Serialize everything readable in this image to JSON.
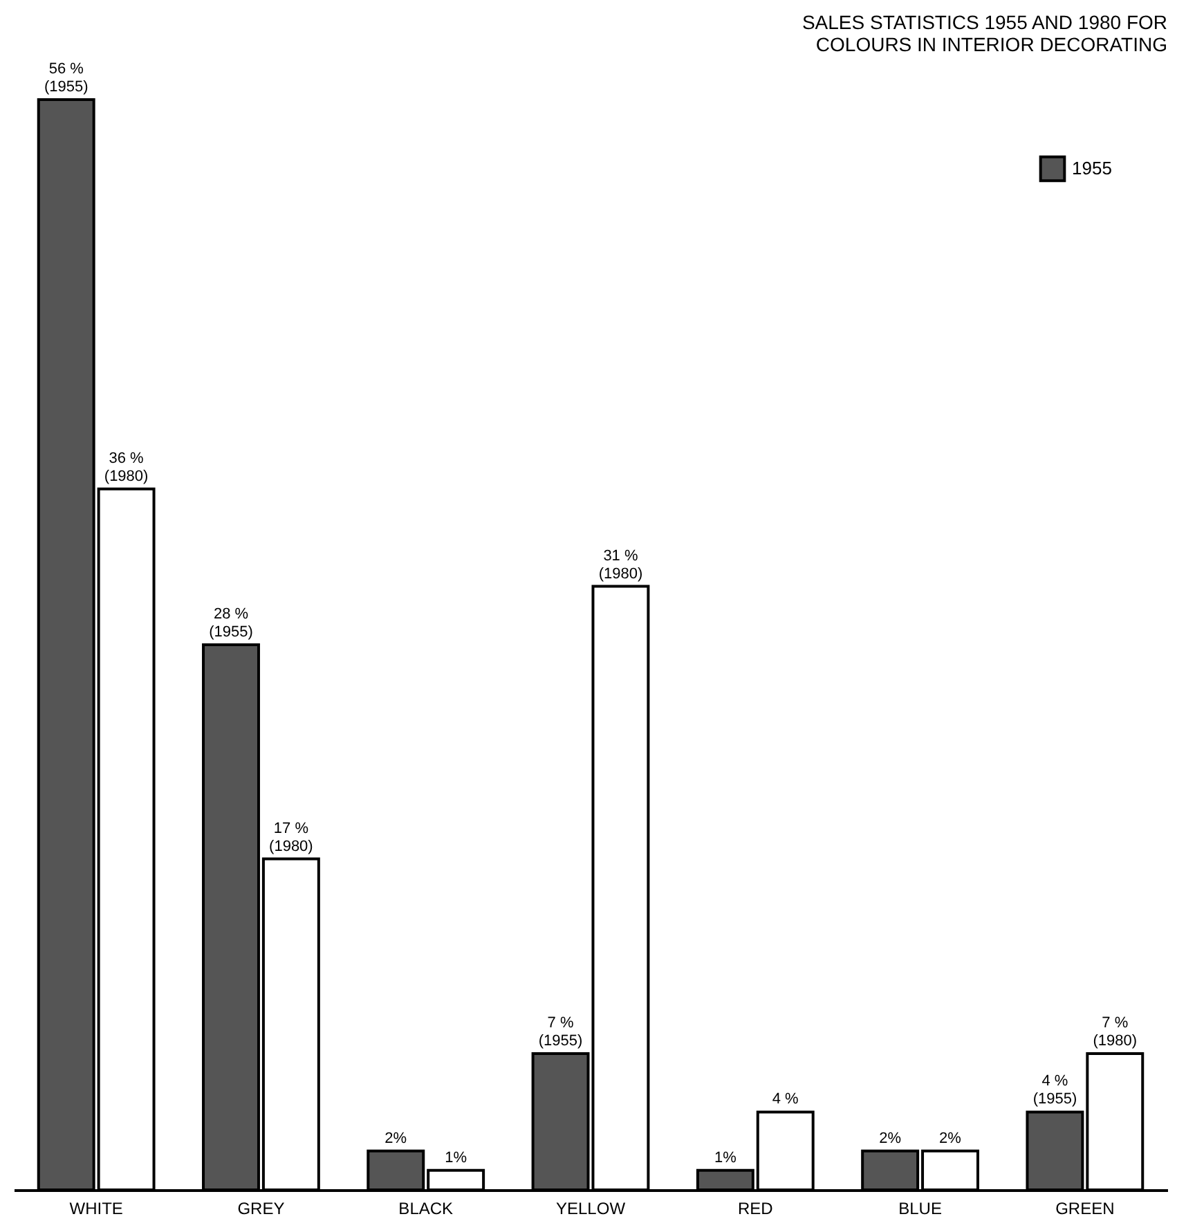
{
  "chart_data": {
    "type": "bar",
    "title": [
      "SALES STATISTICS 1955 AND 1980 FOR",
      "COLOURS IN INTERIOR DECORATING"
    ],
    "categories": [
      "WHITE",
      "GREY",
      "BLACK",
      "YELLOW",
      "RED",
      "BLUE",
      "GREEN"
    ],
    "series": [
      {
        "name": "1955",
        "color": "#555555",
        "values": [
          56,
          28,
          2,
          7,
          1,
          2,
          4
        ],
        "value_labels": [
          "56 % (1955)",
          "28 % (1955)",
          "2%",
          "7 % (1955)",
          "1%",
          "2%",
          "4 % (1955)"
        ]
      },
      {
        "color": "#ffffff",
        "values": [
          36,
          17,
          1,
          31,
          4,
          2,
          7
        ],
        "value_labels": [
          "36 % (1980)",
          "17 % (1980)",
          "1%",
          "31 % (1980)",
          "4 %",
          "2%",
          "7 % (1980)"
        ]
      }
    ],
    "legend": "top right"
  }
}
